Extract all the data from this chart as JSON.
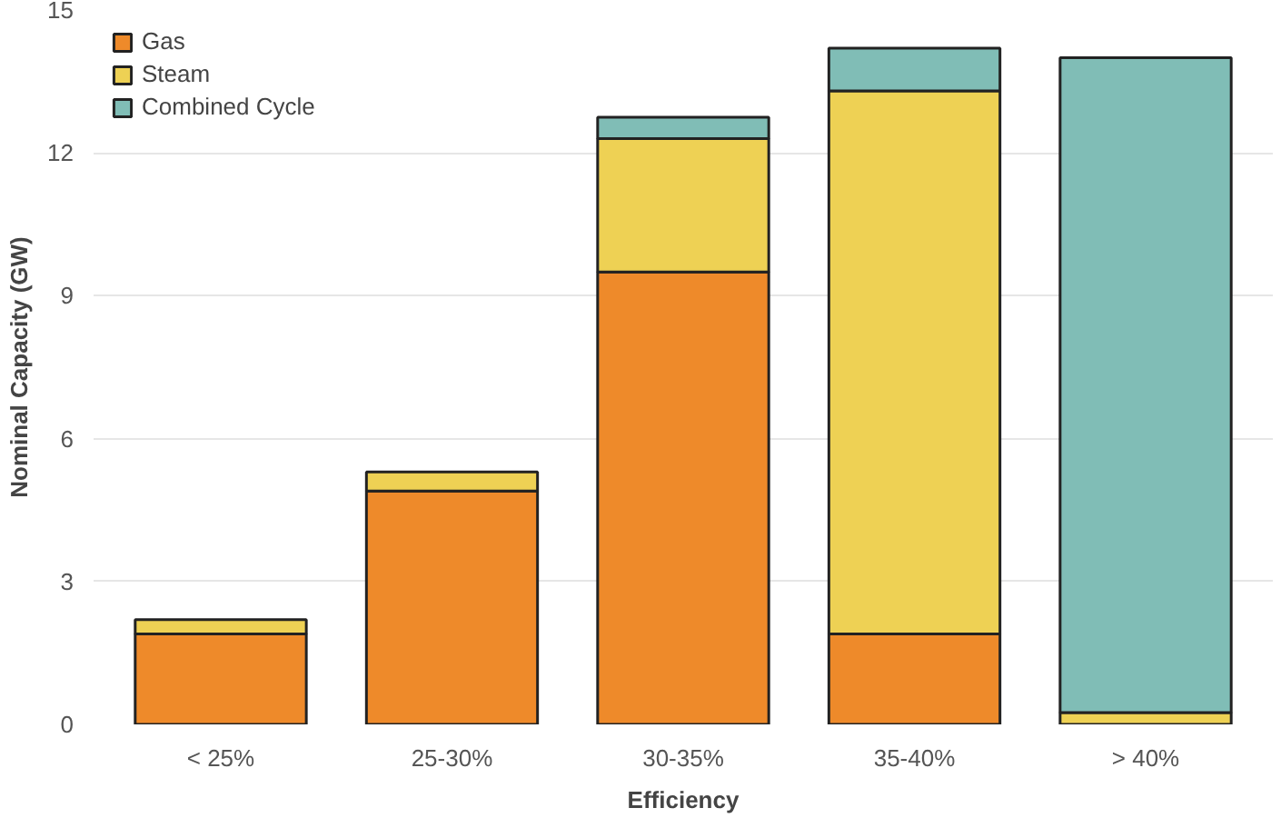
{
  "chart_data": {
    "type": "bar",
    "stacked": true,
    "xlabel": "Efficiency",
    "ylabel": "Nominal Capacity (GW)",
    "categories": [
      "< 25%",
      "25-30%",
      "30-35%",
      "35-40%",
      "> 40%"
    ],
    "series": [
      {
        "name": "Gas",
        "color": "#ee8a2a",
        "values": [
          1.9,
          4.9,
          9.5,
          1.9,
          0
        ]
      },
      {
        "name": "Steam",
        "color": "#eed154",
        "values": [
          0.3,
          0.4,
          2.8,
          11.4,
          0.25
        ]
      },
      {
        "name": "Combined Cycle",
        "color": "#80bdb6",
        "values": [
          0,
          0,
          0.45,
          0.9,
          13.75
        ]
      }
    ],
    "ylim": [
      0,
      15
    ],
    "yticks": [
      0,
      3,
      6,
      9,
      12,
      15
    ],
    "grid": "y",
    "legend": "top left"
  }
}
